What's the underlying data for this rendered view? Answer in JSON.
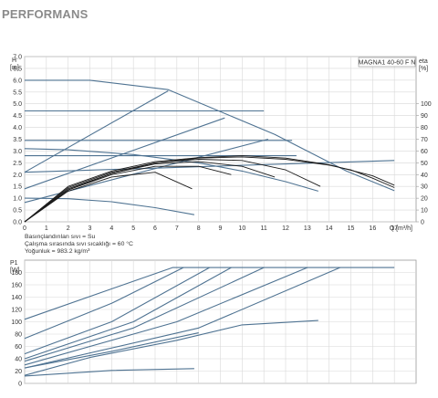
{
  "page": {
    "title": "PERFORMANS"
  },
  "chart_data": [
    {
      "type": "line",
      "name": "head-curve",
      "model_label": "MAGNA1 40-60 F N",
      "y_axis_label_top": "H",
      "y_axis_label_unit": "[m]",
      "y2_axis_label": "eta",
      "y2_axis_unit": "[%]",
      "x_axis_label": "Q [m³/h]",
      "xlim": [
        0,
        18
      ],
      "ylim": [
        0,
        7
      ],
      "y2lim": [
        0,
        140
      ],
      "x_ticks": [
        "0",
        "1",
        "2",
        "3",
        "4",
        "5",
        "6",
        "7",
        "8",
        "9",
        "10",
        "11",
        "12",
        "13",
        "14",
        "15",
        "16",
        "17"
      ],
      "y_ticks": [
        "0.0",
        "0.5",
        "1.0",
        "1.5",
        "2.0",
        "2.5",
        "3.0",
        "3.5",
        "4.0",
        "4.5",
        "5.0",
        "5.5",
        "6.0",
        "6.5",
        "7.0"
      ],
      "y2_ticks": [
        "0",
        "10",
        "20",
        "30",
        "40",
        "50",
        "60",
        "70",
        "80",
        "90",
        "100"
      ],
      "grid": true,
      "notes": [
        "Basınçlandırılan sıvı = Su",
        "Çalışma sırasında sıvı sıcaklığı = 60 °C",
        "Yoğunluk = 983.2 kg/m³"
      ],
      "series_blue": [
        {
          "x": [
            0,
            3,
            6.6,
            11.5,
            14.8,
            17
          ],
          "y": [
            6.0,
            6.0,
            5.6,
            3.7,
            2.15,
            1.32
          ]
        },
        {
          "x": [
            0,
            2,
            5,
            8,
            10,
            12,
            13.5
          ],
          "y": [
            3.1,
            3.05,
            2.85,
            2.5,
            2.15,
            1.7,
            1.3
          ]
        },
        {
          "x": [
            0,
            2,
            4,
            6,
            7.8
          ],
          "y": [
            1.0,
            0.98,
            0.85,
            0.6,
            0.3
          ]
        },
        {
          "x": [
            0,
            6.6
          ],
          "y": [
            2.1,
            5.55
          ]
        },
        {
          "x": [
            0,
            9.2
          ],
          "y": [
            1.4,
            4.4
          ]
        },
        {
          "x": [
            0,
            11.2
          ],
          "y": [
            0.82,
            3.5
          ]
        },
        {
          "x": [
            0,
            17
          ],
          "y": [
            2.1,
            2.6
          ]
        },
        {
          "x": [
            0,
            11.0
          ],
          "y": [
            4.7,
            4.7
          ]
        },
        {
          "x": [
            0,
            12.3
          ],
          "y": [
            3.45,
            3.45
          ]
        },
        {
          "x": [
            0,
            12.5
          ],
          "y": [
            2.8,
            2.8
          ]
        }
      ],
      "series_black": [
        {
          "x": [
            0,
            2,
            4,
            6,
            8,
            10,
            12,
            14,
            16,
            17
          ],
          "y": [
            0,
            1.5,
            2.15,
            2.55,
            2.72,
            2.8,
            2.7,
            2.42,
            1.95,
            1.55
          ]
        },
        {
          "x": [
            0,
            2,
            4,
            6,
            8,
            10,
            12,
            14,
            15,
            16,
            17
          ],
          "y": [
            0,
            1.35,
            2.05,
            2.5,
            2.7,
            2.75,
            2.65,
            2.4,
            2.2,
            1.85,
            1.45
          ]
        },
        {
          "x": [
            0,
            2,
            4,
            6,
            8,
            10,
            12,
            13.6
          ],
          "y": [
            0,
            1.45,
            2.1,
            2.5,
            2.65,
            2.6,
            2.2,
            1.5
          ]
        },
        {
          "x": [
            0,
            2,
            4,
            6,
            8,
            10,
            11.5
          ],
          "y": [
            0,
            1.4,
            2.05,
            2.45,
            2.55,
            2.35,
            1.9
          ]
        },
        {
          "x": [
            0,
            2,
            4,
            6,
            8,
            9.5
          ],
          "y": [
            0,
            1.35,
            2.0,
            2.35,
            2.35,
            2.0
          ]
        },
        {
          "x": [
            0,
            2,
            4,
            6,
            7.7
          ],
          "y": [
            0,
            1.3,
            1.9,
            2.1,
            1.4
          ]
        }
      ]
    },
    {
      "type": "line",
      "name": "power-curve",
      "y_axis_label_top": "P1",
      "y_axis_label_unit": "[W]",
      "xlim": [
        0,
        18
      ],
      "ylim": [
        0,
        200
      ],
      "y_ticks": [
        "0",
        "20",
        "40",
        "60",
        "80",
        "100",
        "120",
        "140",
        "160",
        "180"
      ],
      "grid": true,
      "series_blue": [
        {
          "x": [
            0,
            6.8,
            17
          ],
          "y": [
            104,
            188,
            188
          ]
        },
        {
          "x": [
            0,
            4,
            7.3
          ],
          "y": [
            73,
            130,
            188
          ]
        },
        {
          "x": [
            0,
            4,
            8.5
          ],
          "y": [
            48,
            100,
            188
          ]
        },
        {
          "x": [
            0,
            5,
            9.5
          ],
          "y": [
            40,
            100,
            188
          ]
        },
        {
          "x": [
            0,
            5,
            11
          ],
          "y": [
            36,
            90,
            188
          ]
        },
        {
          "x": [
            0,
            7,
            13
          ],
          "y": [
            30,
            100,
            188
          ]
        },
        {
          "x": [
            0,
            8,
            14.5
          ],
          "y": [
            25,
            90,
            188
          ]
        },
        {
          "x": [
            0,
            3,
            7,
            10,
            13.5
          ],
          "y": [
            13,
            42,
            70,
            95,
            102
          ]
        },
        {
          "x": [
            0,
            4,
            7.8
          ],
          "y": [
            12,
            21,
            24
          ]
        },
        {
          "x": [
            0,
            4,
            8
          ],
          "y": [
            25,
            52,
            82
          ]
        }
      ]
    }
  ]
}
